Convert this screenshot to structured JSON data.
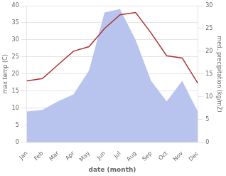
{
  "chart_data": {
    "type": "line",
    "xlabel": "date (month)",
    "ylabel": "max temp (C)",
    "y2label": "med. precipitation (kg/m2)",
    "categories": [
      "Jan",
      "Feb",
      "Mar",
      "Apr",
      "May",
      "Jun",
      "Jul",
      "Aug",
      "Sep",
      "Oct",
      "Nov",
      "Dec"
    ],
    "series": [
      {
        "type": "area",
        "color": "#b8c4ee",
        "values": [
          9.0,
          9.5,
          12.0,
          14.0,
          21.0,
          38.0,
          39.0,
          30.0,
          18.0,
          12.0,
          18.0,
          9.0
        ]
      },
      {
        "type": "line",
        "color": "#b03030",
        "axis": "y2",
        "values": [
          13.5,
          14.0,
          17.0,
          20.0,
          21.0,
          25.0,
          28.0,
          28.5,
          24.0,
          19.0,
          18.5,
          13.0
        ]
      }
    ],
    "ylim": [
      0,
      40
    ],
    "yticks": [
      0,
      5,
      10,
      15,
      20,
      25,
      30,
      35,
      40
    ],
    "y2lim": [
      0,
      30
    ],
    "y2ticks": [
      0,
      5,
      10,
      15,
      20,
      25,
      30
    ],
    "grid": true
  }
}
